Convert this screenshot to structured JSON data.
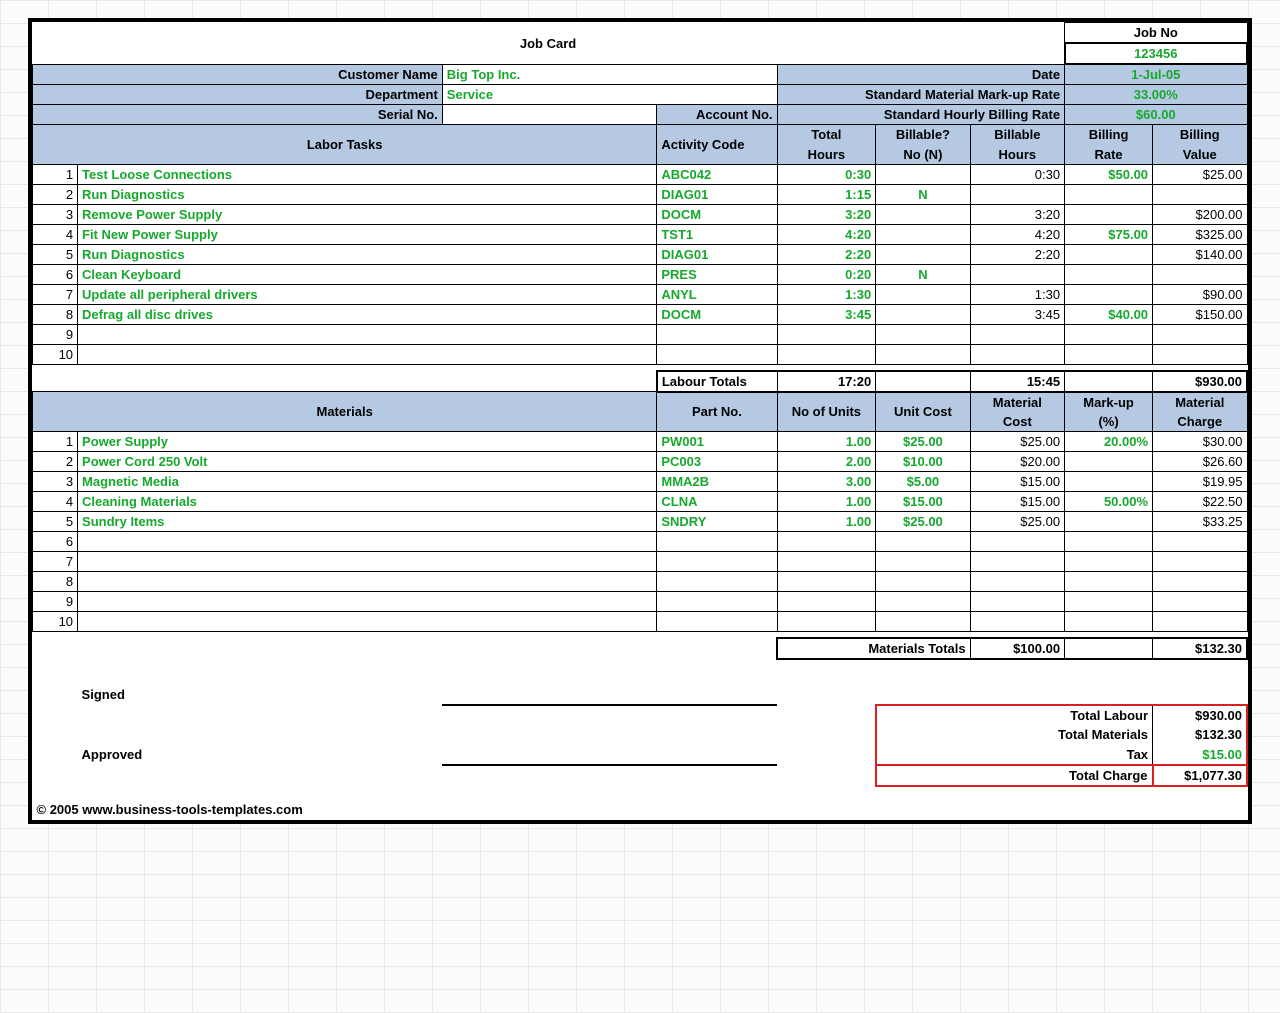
{
  "title": "Job Card",
  "job_no_label": "Job No",
  "job_no": "123456",
  "meta": {
    "customer_name_label": "Customer Name",
    "customer_name": "Big Top Inc.",
    "date_label": "Date",
    "date": "1-Jul-05",
    "department_label": "Department",
    "department": "Service",
    "markup_label": "Standard Material Mark-up Rate",
    "markup": "33.00%",
    "serial_label": "Serial No.",
    "serial": "",
    "account_label": "Account No.",
    "account": "",
    "hourly_label": "Standard Hourly Billing Rate",
    "hourly": "$60.00"
  },
  "labor": {
    "headers": {
      "tasks": "Labor Tasks",
      "code": "Activity Code",
      "total_hours": "Total Hours",
      "billable_q": "Billable? No (N)",
      "billable_hours": "Billable Hours",
      "rate": "Billing Rate",
      "value": "Billing Value"
    },
    "rows": [
      {
        "n": "1",
        "task": "Test Loose Connections",
        "code": "ABC042",
        "th": "0:30",
        "bq": "",
        "bh": "0:30",
        "rate": "$50.00",
        "val": "$25.00"
      },
      {
        "n": "2",
        "task": "Run Diagnostics",
        "code": "DIAG01",
        "th": "1:15",
        "bq": "N",
        "bh": "",
        "rate": "",
        "val": ""
      },
      {
        "n": "3",
        "task": "Remove Power Supply",
        "code": "DOCM",
        "th": "3:20",
        "bq": "",
        "bh": "3:20",
        "rate": "",
        "val": "$200.00"
      },
      {
        "n": "4",
        "task": "Fit New Power Supply",
        "code": "TST1",
        "th": "4:20",
        "bq": "",
        "bh": "4:20",
        "rate": "$75.00",
        "val": "$325.00"
      },
      {
        "n": "5",
        "task": "Run Diagnostics",
        "code": "DIAG01",
        "th": "2:20",
        "bq": "",
        "bh": "2:20",
        "rate": "",
        "val": "$140.00"
      },
      {
        "n": "6",
        "task": "Clean Keyboard",
        "code": "PRES",
        "th": "0:20",
        "bq": "N",
        "bh": "",
        "rate": "",
        "val": ""
      },
      {
        "n": "7",
        "task": "Update all peripheral drivers",
        "code": "ANYL",
        "th": "1:30",
        "bq": "",
        "bh": "1:30",
        "rate": "",
        "val": "$90.00"
      },
      {
        "n": "8",
        "task": "Defrag all disc drives",
        "code": "DOCM",
        "th": "3:45",
        "bq": "",
        "bh": "3:45",
        "rate": "$40.00",
        "val": "$150.00"
      },
      {
        "n": "9",
        "task": "",
        "code": "",
        "th": "",
        "bq": "",
        "bh": "",
        "rate": "",
        "val": ""
      },
      {
        "n": "10",
        "task": "",
        "code": "",
        "th": "",
        "bq": "",
        "bh": "",
        "rate": "",
        "val": ""
      }
    ],
    "totals_label": "Labour Totals",
    "totals": {
      "th": "17:20",
      "bh": "15:45",
      "val": "$930.00"
    }
  },
  "materials": {
    "headers": {
      "mat": "Materials",
      "part": "Part No.",
      "units": "No of Units",
      "unit_cost": "Unit Cost",
      "mat_cost": "Material Cost",
      "markup": "Mark-up (%)",
      "charge": "Material Charge"
    },
    "rows": [
      {
        "n": "1",
        "mat": "Power Supply",
        "part": "PW001",
        "units": "1.00",
        "uc": "$25.00",
        "mc": "$25.00",
        "mu": "20.00%",
        "ch": "$30.00"
      },
      {
        "n": "2",
        "mat": "Power Cord 250 Volt",
        "part": "PC003",
        "units": "2.00",
        "uc": "$10.00",
        "mc": "$20.00",
        "mu": "",
        "ch": "$26.60"
      },
      {
        "n": "3",
        "mat": "Magnetic Media",
        "part": "MMA2B",
        "units": "3.00",
        "uc": "$5.00",
        "mc": "$15.00",
        "mu": "",
        "ch": "$19.95"
      },
      {
        "n": "4",
        "mat": "Cleaning Materials",
        "part": "CLNA",
        "units": "1.00",
        "uc": "$15.00",
        "mc": "$15.00",
        "mu": "50.00%",
        "ch": "$22.50"
      },
      {
        "n": "5",
        "mat": "Sundry Items",
        "part": "SNDRY",
        "units": "1.00",
        "uc": "$25.00",
        "mc": "$25.00",
        "mu": "",
        "ch": "$33.25"
      },
      {
        "n": "6",
        "mat": "",
        "part": "",
        "units": "",
        "uc": "",
        "mc": "",
        "mu": "",
        "ch": ""
      },
      {
        "n": "7",
        "mat": "",
        "part": "",
        "units": "",
        "uc": "",
        "mc": "",
        "mu": "",
        "ch": ""
      },
      {
        "n": "8",
        "mat": "",
        "part": "",
        "units": "",
        "uc": "",
        "mc": "",
        "mu": "",
        "ch": ""
      },
      {
        "n": "9",
        "mat": "",
        "part": "",
        "units": "",
        "uc": "",
        "mc": "",
        "mu": "",
        "ch": ""
      },
      {
        "n": "10",
        "mat": "",
        "part": "",
        "units": "",
        "uc": "",
        "mc": "",
        "mu": "",
        "ch": ""
      }
    ],
    "totals_label": "Materials Totals",
    "totals": {
      "mc": "$100.00",
      "ch": "$132.30"
    }
  },
  "sig": {
    "signed": "Signed",
    "approved": "Approved"
  },
  "summary": {
    "total_labour_label": "Total Labour",
    "total_labour": "$930.00",
    "total_materials_label": "Total Materials",
    "total_materials": "$132.30",
    "tax_label": "Tax",
    "tax": "$15.00",
    "total_charge_label": "Total Charge",
    "total_charge": "$1,077.30"
  },
  "copyright": "© 2005 www.business-tools-templates.com",
  "style": {
    "header_bg": "#b6c9e2",
    "green": "#17a82e",
    "red": "#d82020"
  }
}
